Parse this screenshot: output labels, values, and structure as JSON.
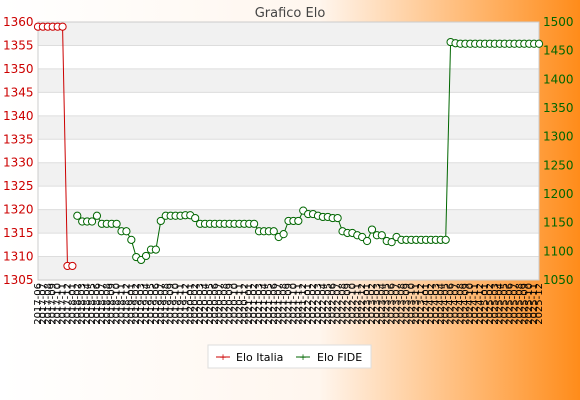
{
  "chart_data": {
    "type": "line",
    "title": "Grafico Elo",
    "xlabel": "",
    "ylabel": "",
    "background_gradient": [
      "#ffffff",
      "#ff8c1a"
    ],
    "grid": true,
    "legend_position": "bottom-center",
    "y_left": {
      "min": 1305,
      "max": 1360,
      "step": 5,
      "color": "#cc0000",
      "ticks": [
        "1305",
        "1310",
        "1315",
        "1320",
        "1325",
        "1330",
        "1335",
        "1340",
        "1345",
        "1350",
        "1355",
        "1360"
      ]
    },
    "y_right": {
      "min": 1050,
      "max": 1500,
      "step": 50,
      "color": "#006600",
      "ticks": [
        "1050",
        "1100",
        "1150",
        "1200",
        "1250",
        "1300",
        "1350",
        "1400",
        "1450",
        "1500"
      ]
    },
    "x_labels": [
      "2017-06",
      "2017-07",
      "2017-08",
      "2017-09",
      "2017-10",
      "2017-11",
      "2017-12",
      "2018-01",
      "2018-02",
      "2018-03",
      "2018-04",
      "2018-05",
      "2018-06",
      "2018-07",
      "2018-08",
      "2018-09",
      "2018-10",
      "2018-11",
      "2018-12",
      "2019-01",
      "2019-02",
      "2019-03",
      "2019-04",
      "2019-05",
      "2019-06",
      "2019-07",
      "2019-08",
      "2019-09",
      "2019-10",
      "2019-11",
      "2019-12",
      "2020-01",
      "2020-02",
      "2020-03",
      "2020-04",
      "2020-05",
      "2020-06",
      "2020-07",
      "2020-08",
      "2020-09",
      "2020-10",
      "2020-11",
      "2020-12",
      "2021-01",
      "2021-02",
      "2021-03",
      "2021-04",
      "2021-05",
      "2021-06",
      "2021-07",
      "2021-08",
      "2021-09",
      "2021-10",
      "2021-11",
      "2021-12",
      "2022-01",
      "2022-02",
      "2022-03",
      "2022-04",
      "2022-05",
      "2022-06",
      "2022-07",
      "2022-08",
      "2022-09",
      "2022-10",
      "2022-11",
      "2022-12",
      "2023-01",
      "2023-02",
      "2023-03",
      "2023-04",
      "2023-05",
      "2023-06",
      "2023-07",
      "2023-08",
      "2023-09",
      "2023-10",
      "2023-11",
      "2023-12",
      "2024-01",
      "2024-02",
      "2024-03",
      "2024-04",
      "2024-05",
      "2024-06",
      "2024-07",
      "2024-08",
      "2024-09",
      "2024-10",
      "2024-11",
      "2024-12",
      "2025-01",
      "2025-02",
      "2025-03",
      "2025-04",
      "2025-05",
      "2025-06",
      "2025-07",
      "2025-08",
      "2025-09",
      "2025-10",
      "2025-11",
      "2025-12"
    ],
    "series": [
      {
        "name": "Elo Italia",
        "axis": "left",
        "color": "#cc0000",
        "points": [
          [
            0,
            1359
          ],
          [
            1,
            1359
          ],
          [
            2,
            1359
          ],
          [
            3,
            1359
          ],
          [
            4,
            1359
          ],
          [
            5,
            1359
          ],
          [
            6,
            1308
          ],
          [
            7,
            1308
          ]
        ]
      },
      {
        "name": "Elo FIDE",
        "axis": "right",
        "color": "#006600",
        "points": [
          [
            8,
            1162
          ],
          [
            9,
            1152
          ],
          [
            10,
            1152
          ],
          [
            11,
            1152
          ],
          [
            12,
            1162
          ],
          [
            13,
            1148
          ],
          [
            14,
            1148
          ],
          [
            15,
            1148
          ],
          [
            16,
            1148
          ],
          [
            17,
            1135
          ],
          [
            18,
            1135
          ],
          [
            19,
            1120
          ],
          [
            20,
            1090
          ],
          [
            21,
            1085
          ],
          [
            22,
            1092
          ],
          [
            23,
            1103
          ],
          [
            24,
            1103
          ],
          [
            25,
            1153
          ],
          [
            26,
            1162
          ],
          [
            27,
            1162
          ],
          [
            28,
            1162
          ],
          [
            29,
            1162
          ],
          [
            30,
            1163
          ],
          [
            31,
            1163
          ],
          [
            32,
            1158
          ],
          [
            33,
            1148
          ],
          [
            34,
            1148
          ],
          [
            35,
            1148
          ],
          [
            36,
            1148
          ],
          [
            37,
            1148
          ],
          [
            38,
            1148
          ],
          [
            39,
            1148
          ],
          [
            40,
            1148
          ],
          [
            41,
            1148
          ],
          [
            42,
            1148
          ],
          [
            43,
            1148
          ],
          [
            44,
            1148
          ],
          [
            45,
            1135
          ],
          [
            46,
            1135
          ],
          [
            47,
            1135
          ],
          [
            48,
            1135
          ],
          [
            49,
            1125
          ],
          [
            50,
            1130
          ],
          [
            51,
            1153
          ],
          [
            52,
            1153
          ],
          [
            53,
            1153
          ],
          [
            54,
            1171
          ],
          [
            55,
            1165
          ],
          [
            56,
            1165
          ],
          [
            57,
            1162
          ],
          [
            58,
            1160
          ],
          [
            59,
            1160
          ],
          [
            60,
            1158
          ],
          [
            61,
            1158
          ],
          [
            62,
            1135
          ],
          [
            63,
            1132
          ],
          [
            64,
            1132
          ],
          [
            65,
            1128
          ],
          [
            66,
            1125
          ],
          [
            67,
            1118
          ],
          [
            68,
            1138
          ],
          [
            69,
            1128
          ],
          [
            70,
            1128
          ],
          [
            71,
            1118
          ],
          [
            72,
            1116
          ],
          [
            73,
            1125
          ],
          [
            74,
            1120
          ],
          [
            75,
            1120
          ],
          [
            76,
            1120
          ],
          [
            77,
            1120
          ],
          [
            78,
            1120
          ],
          [
            79,
            1120
          ],
          [
            80,
            1120
          ],
          [
            81,
            1120
          ],
          [
            82,
            1120
          ],
          [
            83,
            1120
          ],
          [
            84,
            1465
          ],
          [
            85,
            1463
          ],
          [
            86,
            1462
          ],
          [
            87,
            1462
          ],
          [
            88,
            1462
          ],
          [
            89,
            1462
          ],
          [
            90,
            1462
          ],
          [
            91,
            1462
          ],
          [
            92,
            1462
          ],
          [
            93,
            1462
          ],
          [
            94,
            1462
          ],
          [
            95,
            1462
          ],
          [
            96,
            1462
          ],
          [
            97,
            1462
          ],
          [
            98,
            1462
          ],
          [
            99,
            1462
          ],
          [
            100,
            1462
          ],
          [
            101,
            1462
          ],
          [
            102,
            1462
          ]
        ]
      }
    ]
  }
}
